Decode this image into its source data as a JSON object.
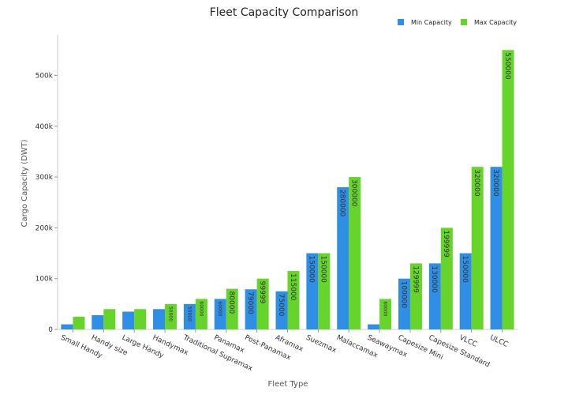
{
  "chart_data": {
    "type": "bar",
    "title": "Fleet Capacity Comparison",
    "xlabel": "Fleet Type",
    "ylabel": "Cargo Capacity (DWT)",
    "ylim": [
      0,
      580000
    ],
    "yticks": [
      0,
      100000,
      200000,
      300000,
      400000,
      500000
    ],
    "ytick_labels": [
      "0",
      "100k",
      "200k",
      "300k",
      "400k",
      "500k"
    ],
    "grid": false,
    "legend_position": "top-right",
    "categories": [
      "Small Handy",
      "Handy size",
      "Large Handy",
      "Handymax",
      "Traditional Supramax",
      "Panamax",
      "Post-Panamax",
      "Aframax",
      "Suezmax",
      "Malaccamax",
      "Seawaymax",
      "Capesize Mini",
      "Capesize Standard",
      "VLCC",
      "ULCC"
    ],
    "series": [
      {
        "name": "Min Capacity",
        "color": "#2f8ee5",
        "values": [
          10000,
          28000,
          35000,
          40000,
          50000,
          60000,
          79000,
          75000,
          150000,
          280000,
          10000,
          100000,
          130000,
          150000,
          320000
        ],
        "labels": [
          "",
          "",
          "",
          "",
          "50000",
          "60000",
          "79000",
          "75000",
          "150000",
          "280000",
          "",
          "100000",
          "130000",
          "150000",
          "320000"
        ]
      },
      {
        "name": "Max Capacity",
        "color": "#66d42b",
        "values": [
          24999,
          40000,
          39999,
          50000,
          60000,
          80000,
          99999,
          115000,
          150000,
          300000,
          60000,
          129999,
          199999,
          320000,
          550000
        ],
        "labels": [
          "",
          "",
          "",
          "50000",
          "60000",
          "80000",
          "99999",
          "115000",
          "150000",
          "300000",
          "60000",
          "129999",
          "199999",
          "320000",
          "550000"
        ]
      }
    ]
  }
}
